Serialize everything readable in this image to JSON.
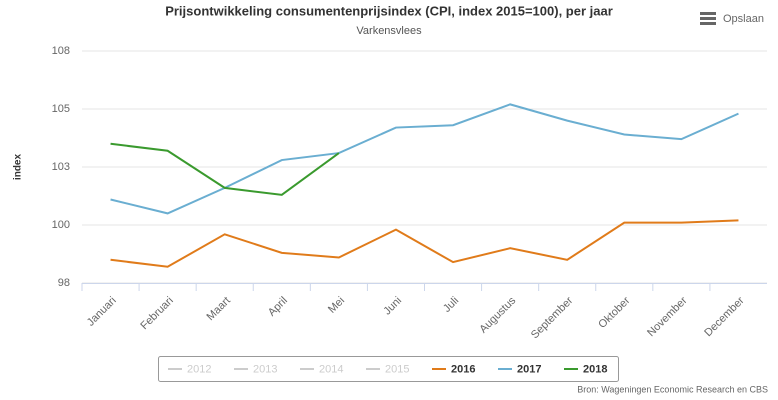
{
  "chart_data": {
    "type": "line",
    "title": "Prijsontwikkeling consumentenprijsindex (CPI, index 2015=100), per jaar",
    "subtitle": "Varkensvlees",
    "y_label": "index",
    "menu_button": "Opslaan",
    "credits": "Bron: Wageningen Economic Research en CBS",
    "categories": [
      "Januari",
      "Februari",
      "Maart",
      "April",
      "Mei",
      "Juni",
      "Juli",
      "Augustus",
      "September",
      "Oktober",
      "November",
      "December"
    ],
    "ylim": [
      97.5,
      107.5
    ],
    "yticks": [
      {
        "value": 97.5,
        "label": "98"
      },
      {
        "value": 100,
        "label": "100"
      },
      {
        "value": 102.5,
        "label": "103"
      },
      {
        "value": 105,
        "label": "105"
      },
      {
        "value": 107.5,
        "label": "108"
      }
    ],
    "grid": true,
    "legend": "bottom",
    "series": [
      {
        "name": "2012",
        "color": "#cccccc",
        "visible": false,
        "values": [
          null,
          null,
          null,
          null,
          null,
          null,
          null,
          null,
          null,
          null,
          null,
          null
        ]
      },
      {
        "name": "2013",
        "color": "#cccccc",
        "visible": false,
        "values": [
          null,
          null,
          null,
          null,
          null,
          null,
          null,
          null,
          null,
          null,
          null,
          null
        ]
      },
      {
        "name": "2014",
        "color": "#cccccc",
        "visible": false,
        "values": [
          null,
          null,
          null,
          null,
          null,
          null,
          null,
          null,
          null,
          null,
          null,
          null
        ]
      },
      {
        "name": "2015",
        "color": "#cccccc",
        "visible": false,
        "values": [
          null,
          null,
          null,
          null,
          null,
          null,
          null,
          null,
          null,
          null,
          null,
          null
        ]
      },
      {
        "name": "2016",
        "color": "#e07b1a",
        "visible": true,
        "values": [
          98.5,
          98.2,
          99.6,
          98.8,
          98.6,
          99.8,
          98.4,
          99.0,
          98.5,
          100.1,
          100.1,
          100.2
        ]
      },
      {
        "name": "2017",
        "color": "#6aaed1",
        "visible": true,
        "values": [
          101.1,
          100.5,
          101.6,
          102.8,
          103.1,
          104.2,
          104.3,
          105.2,
          104.5,
          103.9,
          103.7,
          104.8
        ]
      },
      {
        "name": "2018",
        "color": "#3a9a2e",
        "visible": true,
        "values": [
          103.5,
          103.2,
          101.6,
          101.3,
          103.1,
          null,
          null,
          null,
          null,
          null,
          null,
          null
        ]
      }
    ]
  }
}
